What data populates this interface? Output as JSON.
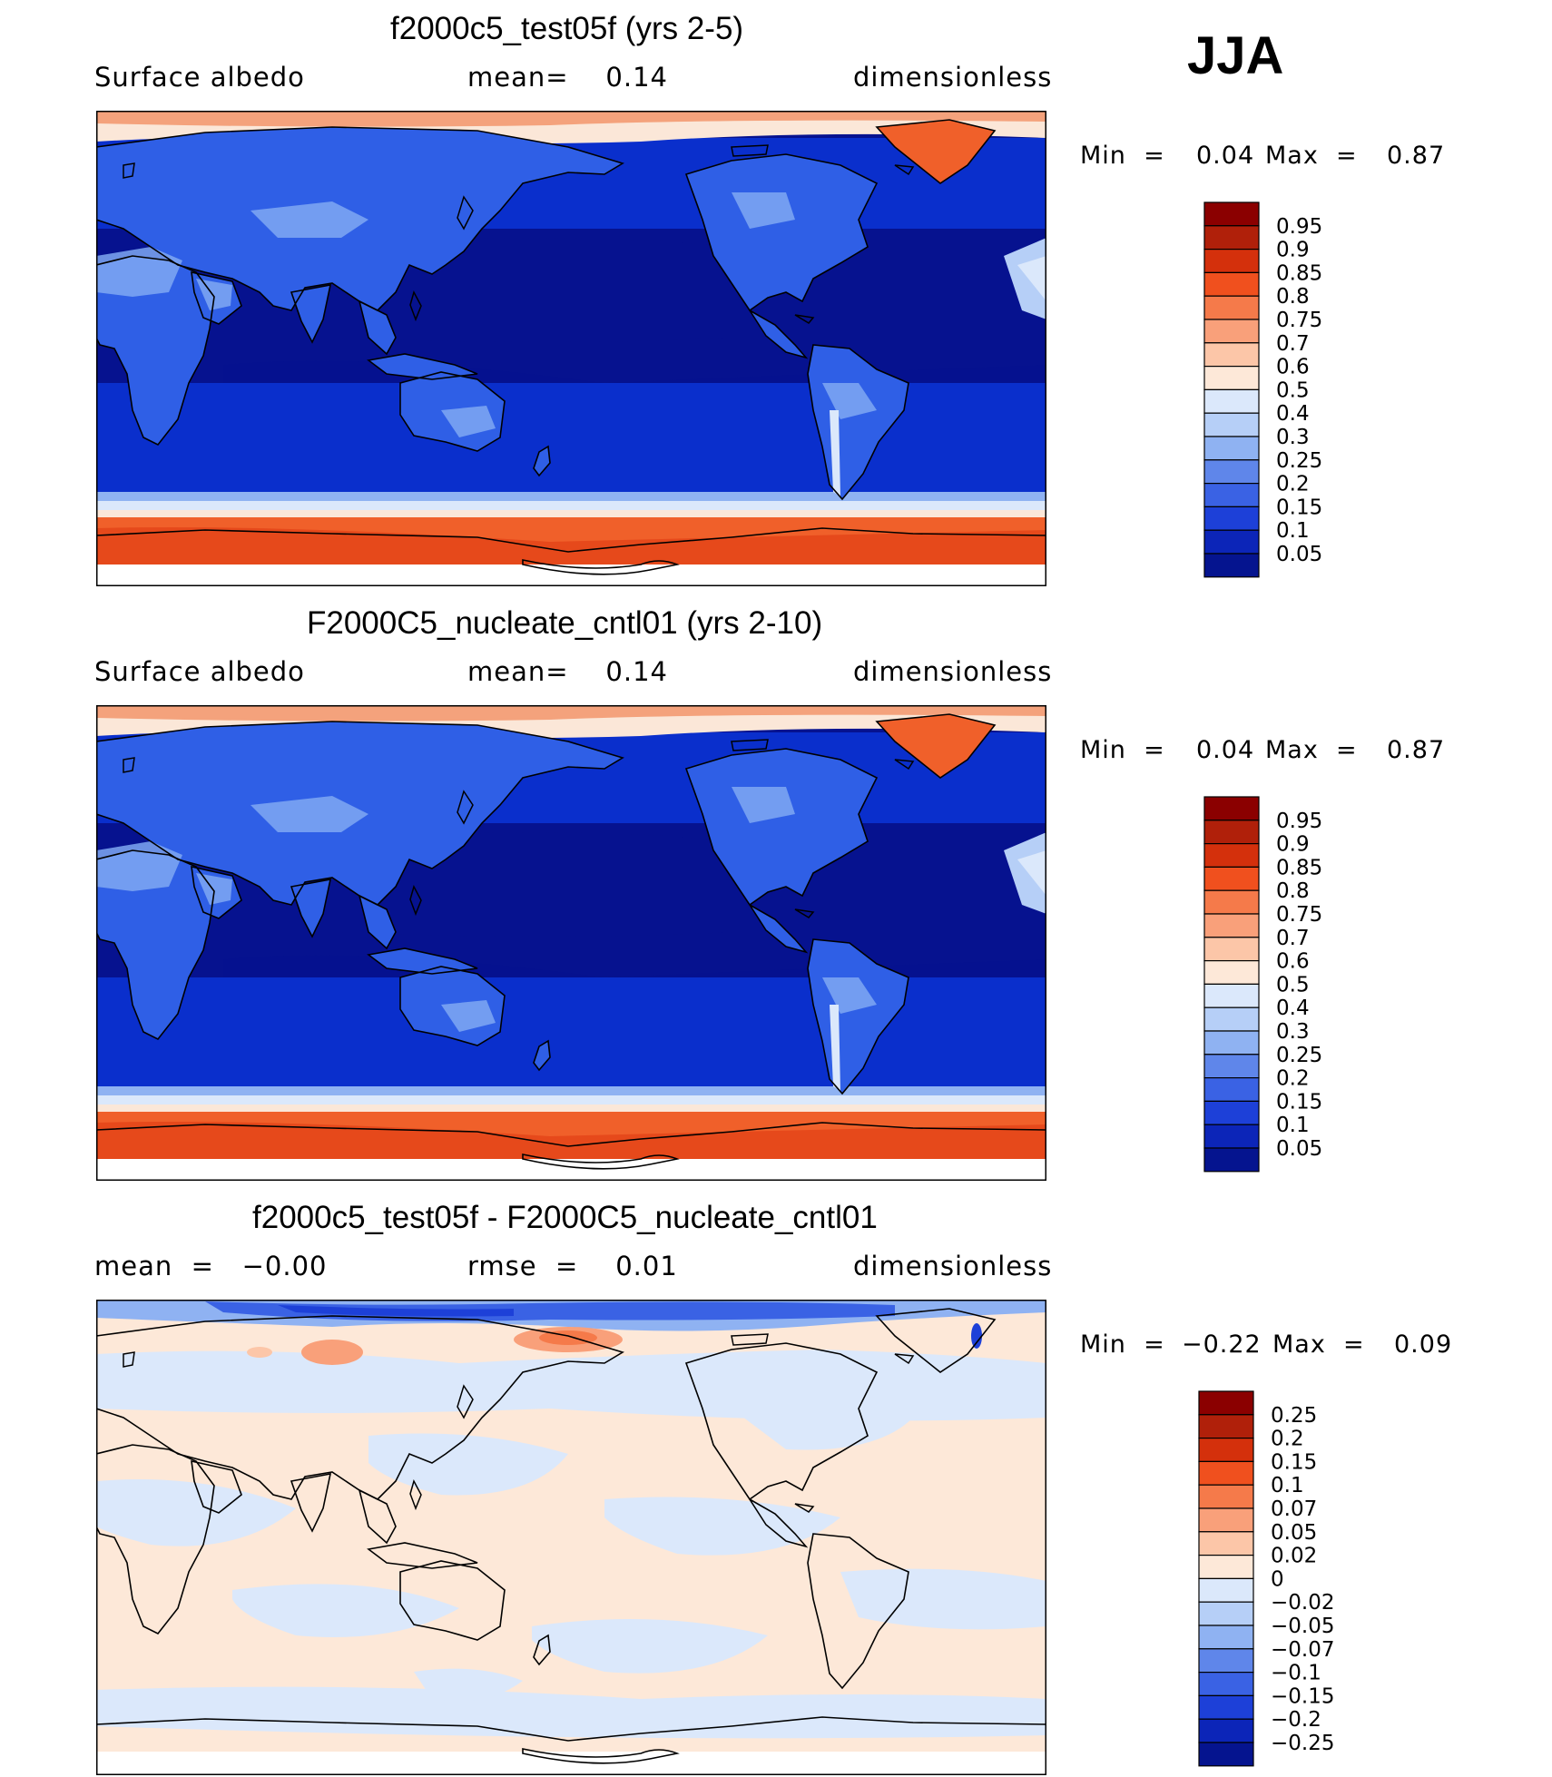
{
  "season": "JJA",
  "colors": {
    "ocean_low": "#06128f",
    "ocean": "#0a2fcc",
    "land_mid": "#2f5fe6",
    "land_light": "#7fa8f2",
    "ice_light": "#fbe7d8",
    "ice": "#f4a27c",
    "ice_orange": "#f0602a",
    "ice_red": "#e03a12",
    "coast": "#000000"
  },
  "panels": [
    {
      "title": "f2000c5_test05f (yrs 2-5)",
      "left_label": "Surface albedo",
      "center_label": "mean=    0.14",
      "right_label": "dimensionless",
      "min_label": "Min  =",
      "min_value": "0.04",
      "max_label": "Max  =",
      "max_value": "0.87",
      "colorbar_colors": [
        "#8b0000",
        "#b0200a",
        "#d4300c",
        "#f0501e",
        "#f57a4a",
        "#f9a07a",
        "#fcc6a8",
        "#fde8d8",
        "#dbe8fb",
        "#b6cff7",
        "#8fb2f2",
        "#5f86ea",
        "#3a62e4",
        "#1d40d8",
        "#0c25b8",
        "#05148f"
      ],
      "colorbar_labels": [
        "0.95",
        "0.9",
        "0.85",
        "0.8",
        "0.75",
        "0.7",
        "0.6",
        "0.5",
        "0.4",
        "0.3",
        "0.25",
        "0.2",
        "0.15",
        "0.1",
        "0.05"
      ]
    },
    {
      "title": "F2000C5_nucleate_cntl01 (yrs 2-10)",
      "left_label": "Surface albedo",
      "center_label": "mean=    0.14",
      "right_label": "dimensionless",
      "min_label": "Min  =",
      "min_value": "0.04",
      "max_label": "Max  =",
      "max_value": "0.87",
      "colorbar_colors": [
        "#8b0000",
        "#b0200a",
        "#d4300c",
        "#f0501e",
        "#f57a4a",
        "#f9a07a",
        "#fcc6a8",
        "#fde8d8",
        "#dbe8fb",
        "#b6cff7",
        "#8fb2f2",
        "#5f86ea",
        "#3a62e4",
        "#1d40d8",
        "#0c25b8",
        "#05148f"
      ],
      "colorbar_labels": [
        "0.95",
        "0.9",
        "0.85",
        "0.8",
        "0.75",
        "0.7",
        "0.6",
        "0.5",
        "0.4",
        "0.3",
        "0.25",
        "0.2",
        "0.15",
        "0.1",
        "0.05"
      ]
    },
    {
      "title": "f2000c5_test05f - F2000C5_nucleate_cntl01",
      "left_label": "mean  =   −0.00",
      "center_label": "rmse  =    0.01",
      "right_label": "dimensionless",
      "min_label": "Min  =",
      "min_value": "−0.22",
      "max_label": "Max  =",
      "max_value": "0.09",
      "colorbar_colors": [
        "#8b0000",
        "#b0200a",
        "#d4300c",
        "#f0501e",
        "#f57a4a",
        "#f9a07a",
        "#fcc6a8",
        "#fde8d8",
        "#dbe8fb",
        "#b6cff7",
        "#8fb2f2",
        "#5f86ea",
        "#3a62e4",
        "#1d40d8",
        "#0c25b8",
        "#05148f"
      ],
      "colorbar_labels": [
        "0.25",
        "0.2",
        "0.15",
        "0.1",
        "0.07",
        "0.05",
        "0.02",
        "0",
        "−0.02",
        "−0.05",
        "−0.07",
        "−0.1",
        "−0.15",
        "−0.2",
        "−0.25"
      ]
    }
  ]
}
